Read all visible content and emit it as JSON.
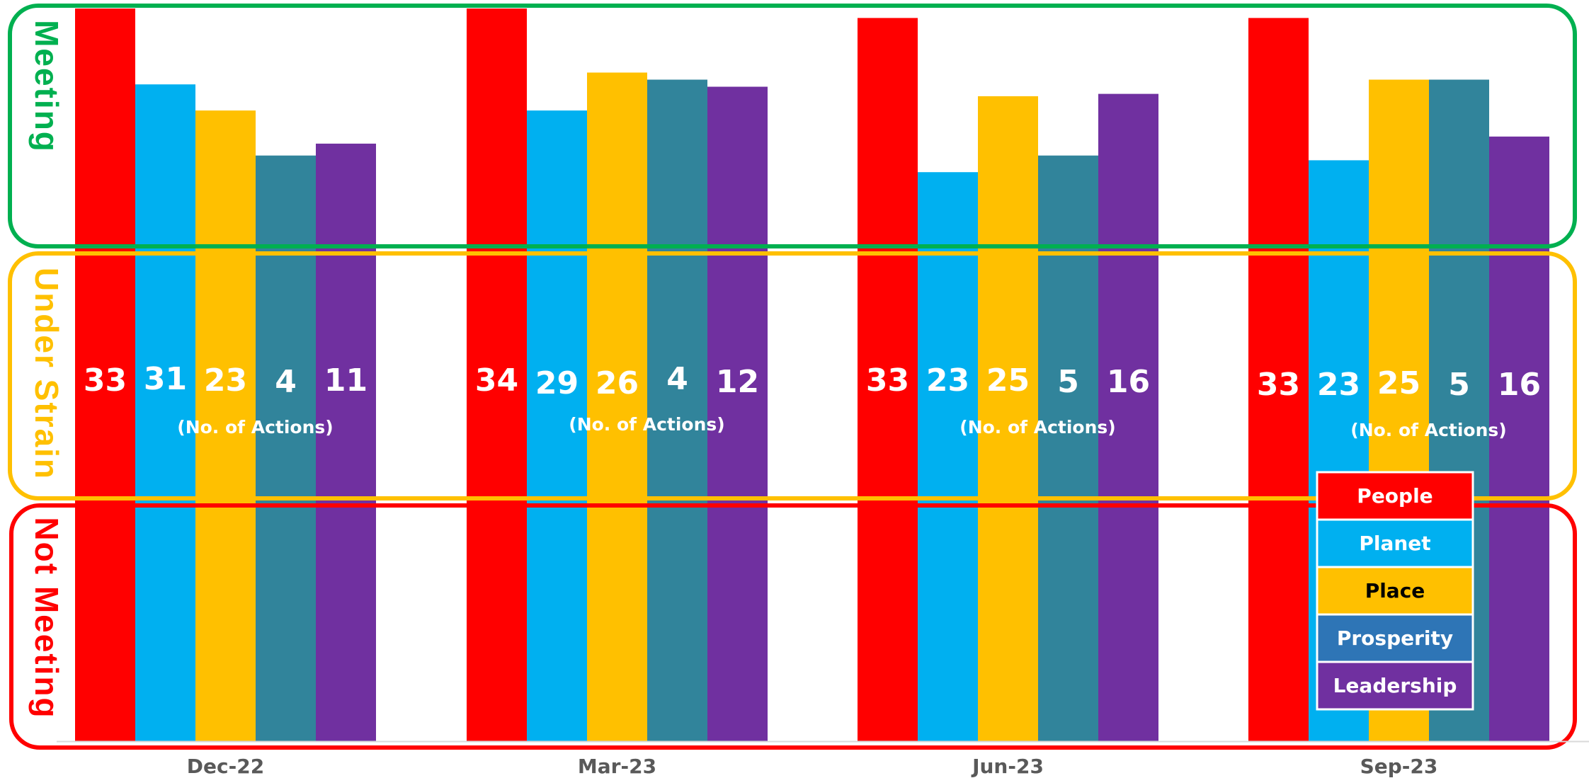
{
  "chart_data": {
    "type": "bar",
    "categories": [
      "Dec-22",
      "Mar-23",
      "Jun-23",
      "Sep-23"
    ],
    "series": [
      {
        "name": "People",
        "color": "#ff0000",
        "text_color": "#ffffff",
        "values": [
          33,
          34,
          33,
          33
        ],
        "meeting_level": [
          1.0,
          1.0,
          0.96,
          0.96
        ]
      },
      {
        "name": "Planet",
        "color": "#00b0f0",
        "text_color": "#ffffff",
        "values": [
          31,
          29,
          23,
          23
        ],
        "meeting_level": [
          0.68,
          0.57,
          0.31,
          0.36
        ]
      },
      {
        "name": "Place",
        "color": "#ffc000",
        "text_color": "#000000",
        "values": [
          23,
          26,
          25,
          25
        ],
        "meeting_level": [
          0.57,
          0.73,
          0.63,
          0.7
        ]
      },
      {
        "name": "Prosperity",
        "color": "#2e75b6",
        "text_color": "#ffffff",
        "values": [
          4,
          4,
          5,
          5
        ],
        "meeting_level": [
          0.38,
          0.7,
          0.38,
          0.7
        ]
      },
      {
        "name": "Leadership",
        "color": "#7030a0",
        "text_color": "#ffffff",
        "values": [
          11,
          12,
          16,
          16
        ],
        "meeting_level": [
          0.43,
          0.67,
          0.64,
          0.46
        ]
      }
    ],
    "bands": [
      {
        "label": "Meeting",
        "color": "#00b050"
      },
      {
        "label": "Under Strain",
        "color": "#ffc000"
      },
      {
        "label": "Not Meeting",
        "color": "#ff0000"
      }
    ],
    "unit_label": "(No. of Actions)",
    "legend_position": "bottom-right",
    "grid": false,
    "prosperity_column_color": "#31849b"
  }
}
